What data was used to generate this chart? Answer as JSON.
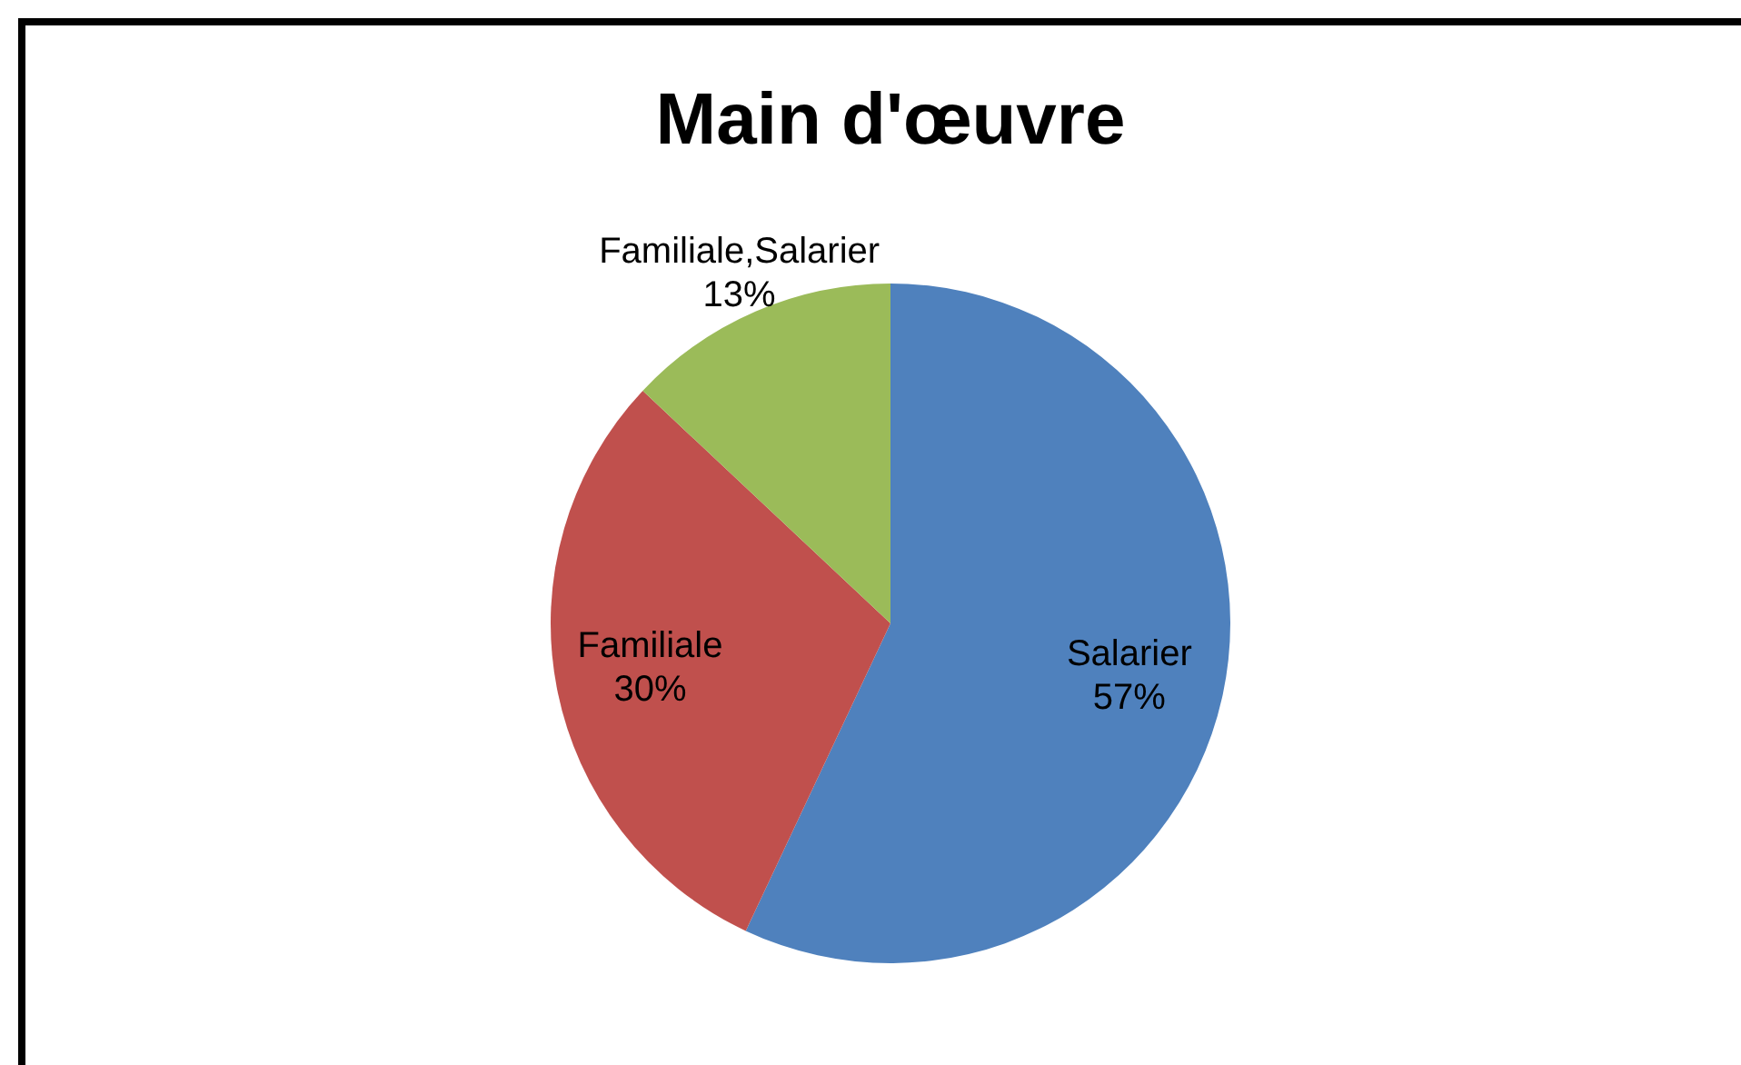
{
  "chart_data": {
    "type": "pie",
    "title": "Main d'œuvre",
    "categories": [
      "Salarier",
      "Familiale",
      "Familiale,Salarier"
    ],
    "values": [
      57,
      30,
      13
    ],
    "value_labels": [
      "57%",
      "30%",
      "13%"
    ],
    "colors": [
      "#4f81bd",
      "#c0504d",
      "#9bbb59"
    ],
    "legend": false
  }
}
